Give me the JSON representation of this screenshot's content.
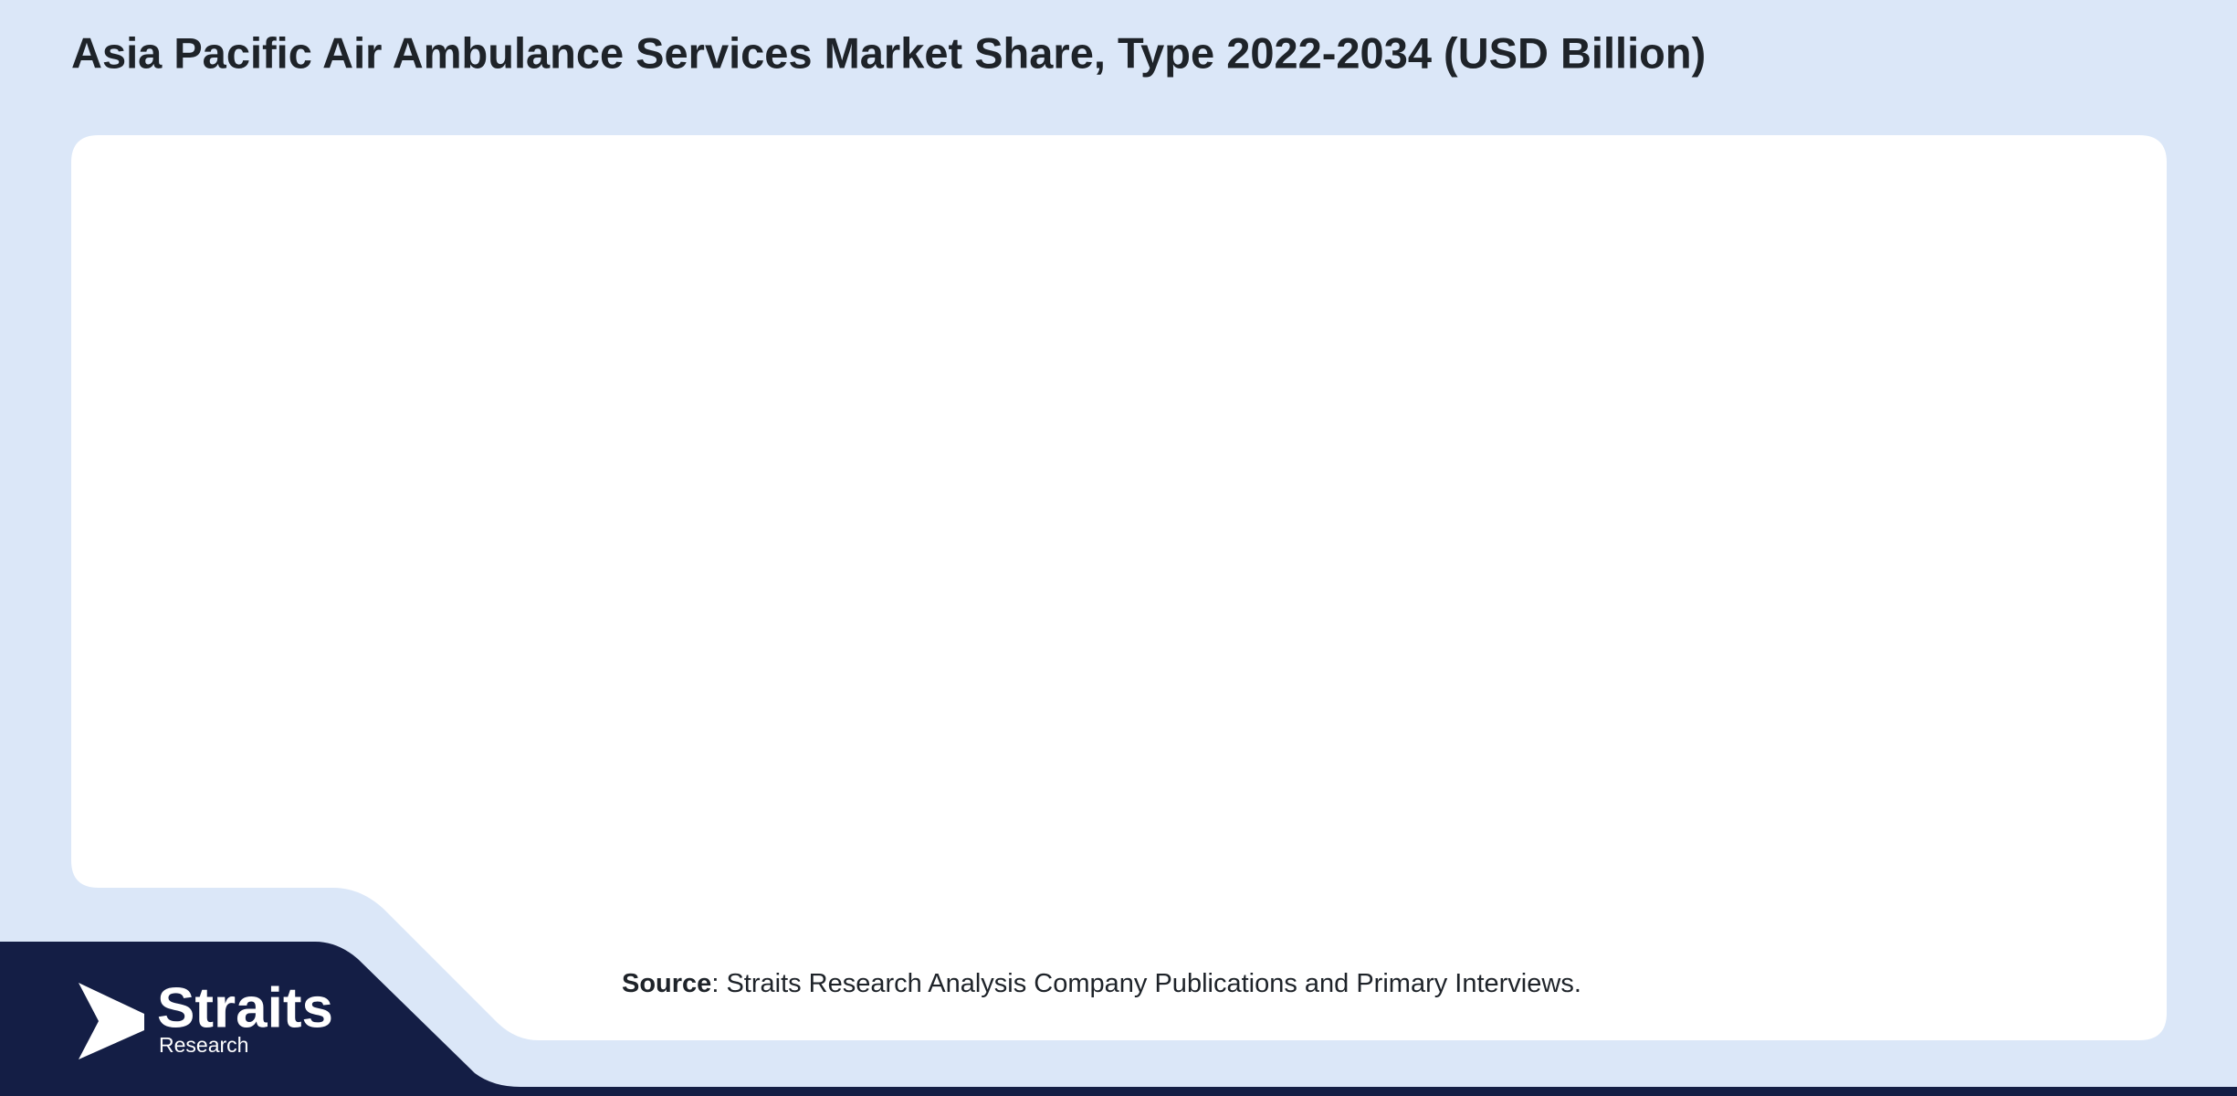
{
  "header": {
    "title": "Asia Pacific Air Ambulance Services Market Share, Type 2022-2034 (USD Billion)"
  },
  "source": {
    "label": "Source",
    "text": ": Straits Research Analysis Company Publications and Primary Interviews."
  },
  "logo": {
    "name": "Straits",
    "subtitle": "Research"
  }
}
